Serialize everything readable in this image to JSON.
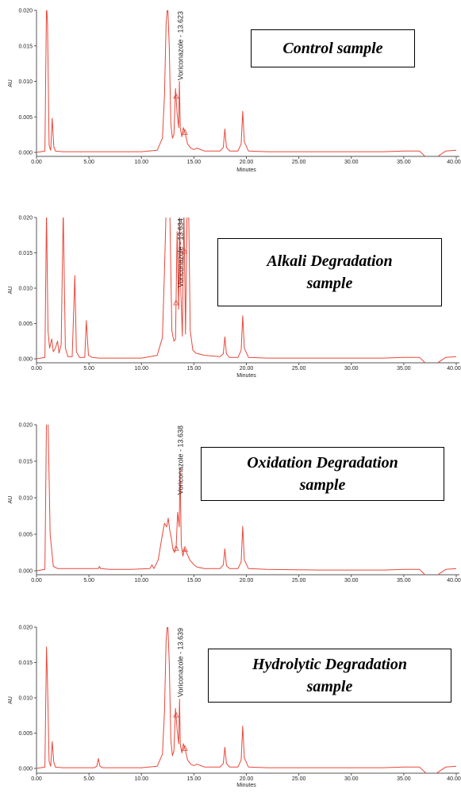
{
  "chart_data": [
    {
      "type": "line",
      "title": "",
      "xlabel": "Minutes",
      "ylabel": "AU",
      "xlim": [
        0,
        40
      ],
      "ylim": [
        -0.0015,
        0.02
      ],
      "x_ticks": [
        "0.00",
        "5.00",
        "10.00",
        "15.00",
        "20.00",
        "25.00",
        "30.00",
        "35.00",
        "40.00"
      ],
      "y_ticks": [
        "0.000",
        "0.005",
        "0.010",
        "0.015",
        "0.020"
      ],
      "annotation": "Voriconazole - 13.623",
      "box_lines": [
        "Control sample"
      ],
      "series": [
        {
          "x": [
            0,
            0.8,
            0.95,
            1.05,
            1.2,
            1.35,
            1.5,
            1.65,
            1.8,
            2.5,
            5,
            8,
            10,
            11.5,
            12.0,
            12.2,
            12.35,
            12.5,
            12.65,
            12.8,
            12.95,
            13.1,
            13.25,
            13.4,
            13.55,
            13.62,
            13.7,
            13.85,
            14.0,
            14.2,
            14.4,
            14.7,
            15.0,
            15.3,
            16,
            17.5,
            17.8,
            17.95,
            18.1,
            18.4,
            19.2,
            19.5,
            19.65,
            19.8,
            20.2,
            22,
            27,
            30,
            33,
            35,
            36.5,
            37.2,
            37.6,
            38.2,
            39,
            40
          ],
          "y": [
            0,
            0.0002,
            0.021,
            0.018,
            0.001,
            0.0003,
            0.0048,
            0.0008,
            0.0002,
            0.0001,
            0.0001,
            0.0001,
            0.0001,
            0.0003,
            0.002,
            0.008,
            0.018,
            0.021,
            0.015,
            0.004,
            0.002,
            0.0025,
            0.009,
            0.0055,
            0.0035,
            0.01,
            0.0034,
            0.0022,
            0.0035,
            0.0025,
            0.0012,
            0.0006,
            0.0004,
            0.0006,
            0.0002,
            0.0002,
            0.0007,
            0.0033,
            0.0007,
            0.0002,
            0.0002,
            0.0012,
            0.0058,
            0.0015,
            0.0002,
            0.0001,
            0.0001,
            0.0001,
            0.0001,
            0.0002,
            0.0002,
            -0.0008,
            -0.0012,
            -0.0006,
            0.0002,
            0.0003
          ]
        }
      ],
      "markers": [
        13.3,
        14.15
      ]
    },
    {
      "type": "line",
      "title": "",
      "xlabel": "Minutes",
      "ylabel": "AU",
      "xlim": [
        0,
        40
      ],
      "ylim": [
        -0.0015,
        0.02
      ],
      "x_ticks": [
        "0.00",
        "5.00",
        "10.00",
        "15.00",
        "20.00",
        "25.00",
        "30.00",
        "35.00",
        "40.00"
      ],
      "y_ticks": [
        "0.000",
        "0.005",
        "0.010",
        "0.015",
        "0.020"
      ],
      "annotation": "Voriconazole - 13.634",
      "box_lines": [
        "Alkali Degradation",
        "sample"
      ],
      "series": [
        {
          "x": [
            0,
            0.8,
            0.95,
            1.1,
            1.25,
            1.45,
            1.6,
            1.8,
            2.0,
            2.15,
            2.35,
            2.55,
            2.75,
            3.0,
            3.4,
            3.65,
            3.8,
            4.1,
            4.6,
            4.75,
            4.95,
            5.3,
            6,
            8,
            10,
            11.5,
            12.0,
            12.2,
            12.35,
            12.5,
            12.7,
            12.9,
            13.1,
            13.25,
            13.4,
            13.55,
            13.63,
            13.75,
            13.9,
            14.05,
            14.2,
            14.35,
            14.5,
            14.65,
            14.9,
            15.2,
            16,
            17.5,
            17.8,
            17.95,
            18.1,
            18.4,
            19.2,
            19.5,
            19.65,
            19.8,
            20.2,
            22,
            27,
            30,
            33,
            35,
            36.5,
            37.2,
            37.6,
            38.2,
            39,
            40
          ],
          "y": [
            0,
            0.0002,
            0.021,
            0.004,
            0.0015,
            0.0028,
            0.001,
            0.0015,
            0.0025,
            0.0008,
            0.002,
            0.021,
            0.0015,
            0.0003,
            0.0003,
            0.0118,
            0.001,
            0.0002,
            0.0002,
            0.0054,
            0.0005,
            0.0002,
            0.0001,
            0.0001,
            0.0001,
            0.0005,
            0.003,
            0.0125,
            0.021,
            0.021,
            0.021,
            0.004,
            0.0025,
            0.0028,
            0.018,
            0.007,
            0.021,
            0.01,
            0.0032,
            0.021,
            0.0035,
            0.021,
            0.021,
            0.004,
            0.0012,
            0.0008,
            0.0005,
            0.0003,
            0.0007,
            0.0031,
            0.0007,
            0.0002,
            0.0002,
            0.0012,
            0.0061,
            0.0015,
            0.0002,
            0.0001,
            0.0001,
            0.0001,
            0.0001,
            0.0002,
            0.0002,
            -0.0008,
            -0.0012,
            -0.0006,
            0.0002,
            0.0003
          ]
        }
      ],
      "markers": [
        13.3,
        14.1
      ]
    },
    {
      "type": "line",
      "title": "",
      "xlabel": "",
      "ylabel": "AU",
      "xlim": [
        0,
        40
      ],
      "ylim": [
        -0.0015,
        0.02
      ],
      "x_ticks": [
        "0.00",
        "5.00",
        "10.00",
        "15.00",
        "20.00",
        "25.00",
        "30.00",
        "35.00",
        "40.00"
      ],
      "y_ticks": [
        "0.000",
        "0.005",
        "0.010",
        "0.015",
        "0.020"
      ],
      "annotation": "Voriconazole - 13.638",
      "box_lines": [
        "Oxidation Degradation",
        "sample"
      ],
      "series": [
        {
          "x": [
            0,
            0.8,
            0.95,
            1.1,
            1.3,
            1.6,
            2.0,
            3,
            5,
            5.9,
            6.0,
            6.1,
            7,
            9,
            10.8,
            11.0,
            11.2,
            11.6,
            12.0,
            12.2,
            12.4,
            12.55,
            12.7,
            12.85,
            13.0,
            13.15,
            13.3,
            13.45,
            13.6,
            13.68,
            13.8,
            13.95,
            14.1,
            14.3,
            14.6,
            15.0,
            15.3,
            16,
            17.5,
            17.8,
            17.95,
            18.1,
            18.4,
            19.2,
            19.5,
            19.65,
            19.8,
            20.2,
            22,
            27,
            30,
            33,
            35,
            36.5,
            37.2,
            37.6,
            38.2,
            39,
            40
          ],
          "y": [
            0,
            0.0002,
            0.021,
            0.021,
            0.005,
            0.0006,
            0.0003,
            0.0003,
            0.0003,
            0.0003,
            0.0006,
            0.0003,
            0.0002,
            0.0002,
            0.0003,
            0.0008,
            0.0003,
            0.0015,
            0.005,
            0.0065,
            0.006,
            0.0072,
            0.0055,
            0.0045,
            0.003,
            0.0025,
            0.003,
            0.008,
            0.006,
            0.014,
            0.0035,
            0.002,
            0.003,
            0.0025,
            0.0015,
            0.0008,
            0.0005,
            0.0003,
            0.0003,
            0.0008,
            0.003,
            0.0007,
            0.0003,
            0.0003,
            0.0012,
            0.0061,
            0.0015,
            0.0003,
            0.0002,
            0.0001,
            0.0001,
            0.0001,
            0.0002,
            0.0002,
            -0.0008,
            -0.0012,
            -0.0006,
            0.0002,
            0.0003
          ]
        }
      ],
      "markers": [
        13.3,
        14.15
      ]
    },
    {
      "type": "line",
      "title": "",
      "xlabel": "Minutes",
      "ylabel": "AU",
      "xlim": [
        0,
        40
      ],
      "ylim": [
        -0.0015,
        0.02
      ],
      "x_ticks": [
        "0.00",
        "5.00",
        "10.00",
        "15.00",
        "20.00",
        "25.00",
        "30.00",
        "35.00",
        "40.00"
      ],
      "y_ticks": [
        "0.000",
        "0.005",
        "0.010",
        "0.015",
        "0.020"
      ],
      "annotation": "Voriconazole - 13.639",
      "box_lines": [
        "Hydrolytic Degradation",
        "sample"
      ],
      "series": [
        {
          "x": [
            0,
            0.8,
            0.95,
            1.05,
            1.2,
            1.35,
            1.5,
            1.65,
            1.8,
            2.5,
            4,
            5.5,
            5.75,
            5.9,
            6.05,
            6.3,
            8,
            10,
            11.5,
            12.0,
            12.2,
            12.35,
            12.5,
            12.65,
            12.8,
            12.95,
            13.1,
            13.25,
            13.4,
            13.55,
            13.63,
            13.7,
            13.85,
            14.0,
            14.2,
            14.4,
            14.7,
            15.0,
            15.3,
            16,
            17.5,
            17.8,
            17.95,
            18.1,
            18.4,
            19.2,
            19.5,
            19.65,
            19.8,
            20.2,
            22,
            27,
            30,
            33,
            35,
            36.5,
            37.2,
            37.6,
            38.2,
            39,
            40
          ],
          "y": [
            0,
            0.0002,
            0.0172,
            0.012,
            0.001,
            0.0003,
            0.0038,
            0.0009,
            0.0002,
            0.0001,
            0.0001,
            0.0001,
            0.0003,
            0.0014,
            0.0003,
            0.0001,
            0.0001,
            0.0001,
            0.0003,
            0.002,
            0.008,
            0.018,
            0.021,
            0.015,
            0.004,
            0.0018,
            0.0025,
            0.0085,
            0.0055,
            0.0035,
            0.0098,
            0.0034,
            0.0022,
            0.0035,
            0.0025,
            0.0012,
            0.0006,
            0.0004,
            0.0006,
            0.0002,
            0.0002,
            0.0007,
            0.003,
            0.0007,
            0.0002,
            0.0002,
            0.0012,
            0.006,
            0.0015,
            0.0002,
            0.0001,
            0.0001,
            0.0001,
            0.0001,
            0.0002,
            0.0002,
            -0.0008,
            -0.0012,
            -0.0006,
            0.0002,
            0.0003
          ]
        }
      ],
      "markers": [
        13.3,
        14.15
      ]
    }
  ],
  "colors": {
    "trace": "#e8473a",
    "axis": "#555555",
    "box_border": "#000000"
  }
}
